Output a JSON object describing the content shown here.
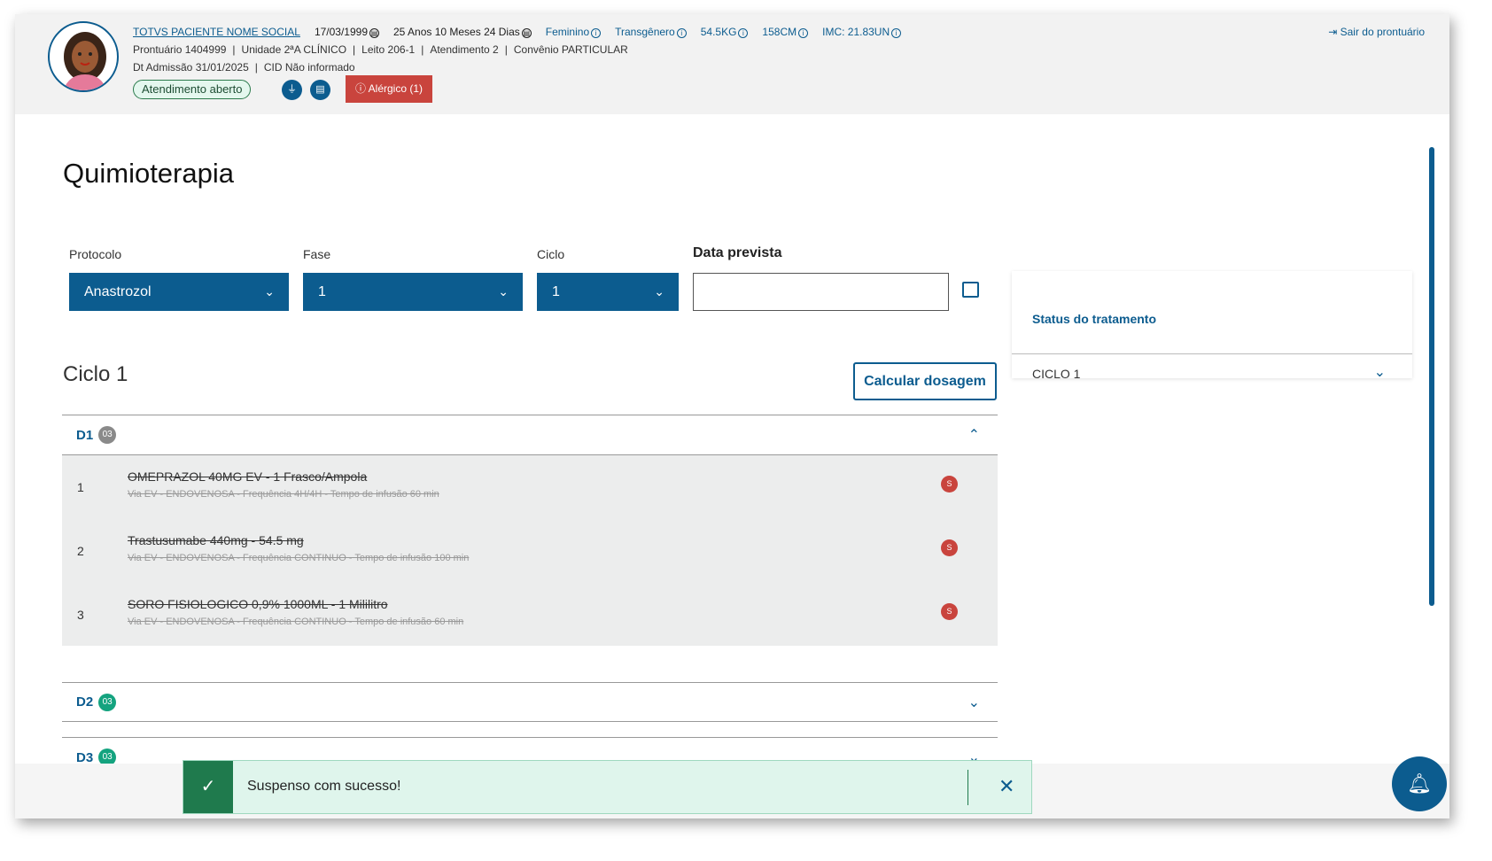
{
  "patient": {
    "name": "TOTVS PACIENTE NOME SOCIAL",
    "birth": "17/03/1999",
    "age": "25 Anos 10 Meses 24 Dias",
    "sex": "Feminino",
    "gender": "Transgênero",
    "weight": "54.5KG",
    "height": "158CM",
    "imc": "IMC: 21.83UN",
    "prontuario": "Prontuário 1404999",
    "unidade": "Unidade 2ªA CLÍNICO",
    "leito": "Leito 206-1",
    "atendimento": "Atendimento 2",
    "convenio": "Convênio PARTICULAR",
    "sep": "|",
    "admissao": "Dt Admissão 31/01/2025",
    "cid": "CID Não informado",
    "status": "Atendimento aberto",
    "alergico": "Alérgico (1)"
  },
  "header": {
    "exit": "Sair do prontuário"
  },
  "page": {
    "title": "Quimioterapia"
  },
  "form": {
    "protocolo_label": "Protocolo",
    "protocolo": "Anastrozol",
    "fase_label": "Fase",
    "fase": "1",
    "ciclo_label": "Ciclo",
    "ciclo": "1",
    "data_label": "Data prevista",
    "data_value": ""
  },
  "status_panel": {
    "title": "Status do tratamento",
    "item": "CICLO 1"
  },
  "cycle": {
    "title": "Ciclo 1",
    "calc": "Calcular dosagem"
  },
  "days": [
    {
      "label": "D1",
      "count": "03",
      "color": "#8a8a8a"
    },
    {
      "label": "D2",
      "count": "03",
      "color": "#14a37f"
    },
    {
      "label": "D3",
      "count": "03",
      "color": "#14a37f"
    }
  ],
  "items": [
    {
      "n": "1",
      "name": "OMEPRAZOL 40MG EV - 1 Frasco/Ampola",
      "detail": "Via EV - ENDOVENOSA - Frequência 4H/4H - Tempo de infusão 60 min",
      "badge": "S"
    },
    {
      "n": "2",
      "name": "Trastusumabe 440mg - 54.5 mg",
      "detail": "Via EV - ENDOVENOSA - Frequência CONTINUO - Tempo de infusão 100 min",
      "badge": "S"
    },
    {
      "n": "3",
      "name": "SORO FISIOLOGICO 0,9% 1000ML - 1 Mililitro",
      "detail": "Via EV - ENDOVENOSA - Frequência CONTINUO - Tempo de infusão 60 min",
      "badge": "S"
    }
  ],
  "toast": {
    "message": "Suspenso com sucesso!"
  },
  "colors": {
    "primary": "#0c5c8f",
    "danger": "#c9443d",
    "success": "#1f7a4d"
  }
}
